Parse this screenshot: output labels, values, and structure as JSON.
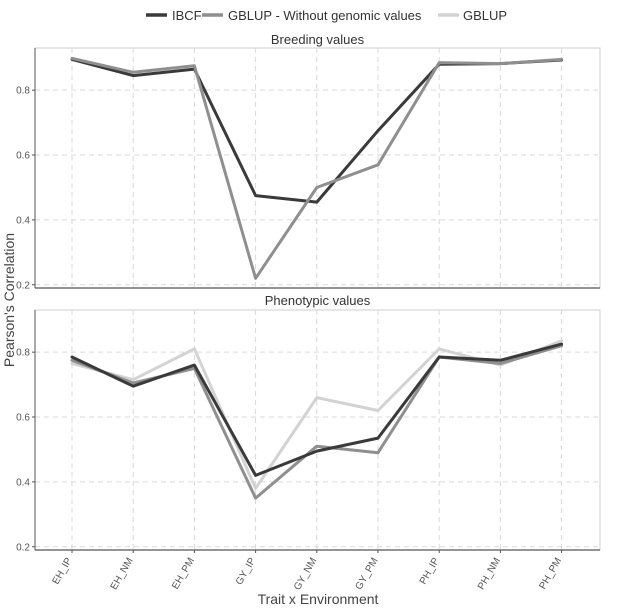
{
  "chart_data": {
    "type": "line",
    "ylabel": "Pearson's Correlation",
    "xlabel": "Trait x Environment",
    "categories": [
      "EH_IP",
      "EH_NM",
      "EH_PM",
      "GY_IP",
      "GY_NM",
      "GY_PM",
      "PH_IP",
      "PH_NM",
      "PH_PM"
    ],
    "yticks": [
      "0.2",
      "0.4",
      "0.6",
      "0.8"
    ],
    "legend_position": "top",
    "grid": true,
    "series_styles": [
      {
        "name": "IBCF",
        "color": "#3a3a3a"
      },
      {
        "name": "GBLUP - Without genomic values",
        "color": "#8f8f8f"
      },
      {
        "name": "GBLUP",
        "color": "#d3d3d3"
      }
    ],
    "panels": [
      {
        "title": "Breeding values",
        "ylim": [
          0.19,
          0.93
        ],
        "series": [
          {
            "name": "IBCF",
            "values": [
              0.895,
              0.845,
              0.865,
              0.475,
              0.455,
              0.675,
              0.88,
              0.882,
              0.893
            ]
          },
          {
            "name": "GBLUP - Without genomic values",
            "values": [
              0.898,
              0.855,
              0.875,
              0.22,
              0.5,
              0.57,
              0.885,
              0.882,
              0.895
            ]
          }
        ]
      },
      {
        "title": "Phenotypic values",
        "ylim": [
          0.19,
          0.93
        ],
        "series": [
          {
            "name": "GBLUP",
            "values": [
              0.765,
              0.715,
              0.81,
              0.38,
              0.66,
              0.62,
              0.81,
              0.76,
              0.835
            ]
          },
          {
            "name": "GBLUP - Without genomic values",
            "values": [
              0.775,
              0.705,
              0.75,
              0.35,
              0.51,
              0.49,
              0.785,
              0.765,
              0.82
            ]
          },
          {
            "name": "IBCF",
            "values": [
              0.785,
              0.695,
              0.76,
              0.42,
              0.495,
              0.535,
              0.785,
              0.775,
              0.825
            ]
          }
        ]
      }
    ]
  }
}
